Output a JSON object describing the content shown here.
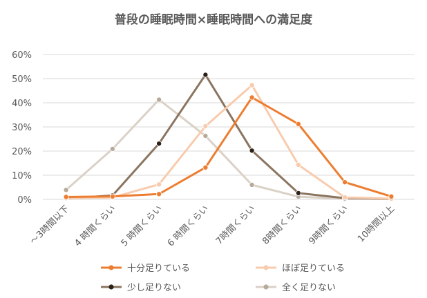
{
  "chart_data": {
    "type": "line",
    "title": "普段の睡眠時間×睡眠時間への満足度",
    "xlabel": "",
    "ylabel": "",
    "categories": [
      "～3時間以下",
      "4 時間くらい",
      "5 時間くらい",
      "6 時間くらい",
      "7時間くらい",
      "8時間くらい",
      "9時間くらい",
      "10時間以上"
    ],
    "y_ticks": [
      "0%",
      "10%",
      "20%",
      "30%",
      "40%",
      "50%",
      "60%"
    ],
    "ylim": [
      0,
      60
    ],
    "grid": true,
    "legend_position": "bottom",
    "series": [
      {
        "name": "十分足りている",
        "color": "#ED7D31",
        "marker_color": "#ED7D31",
        "values": [
          1.0,
          1.2,
          2.2,
          13.2,
          42.2,
          31.2,
          7.1,
          1.2
        ]
      },
      {
        "name": "ほぼ足りている",
        "color": "#F8CBAD",
        "marker_color": "#F8CBAD",
        "values": [
          0.5,
          0.8,
          6.2,
          30.3,
          47.3,
          14.3,
          0.8,
          0.3
        ]
      },
      {
        "name": "少し足りない",
        "color": "#8B7560",
        "marker_color": "#2B2118",
        "values": [
          0.4,
          1.6,
          23.1,
          51.6,
          20.2,
          2.6,
          0.5,
          0.2
        ]
      },
      {
        "name": "全く足りない",
        "color": "#DAD1C7",
        "marker_color": "#B8AA9A",
        "values": [
          3.9,
          20.9,
          41.3,
          26.3,
          6.0,
          1.1,
          0.2,
          0.2
        ]
      }
    ]
  }
}
